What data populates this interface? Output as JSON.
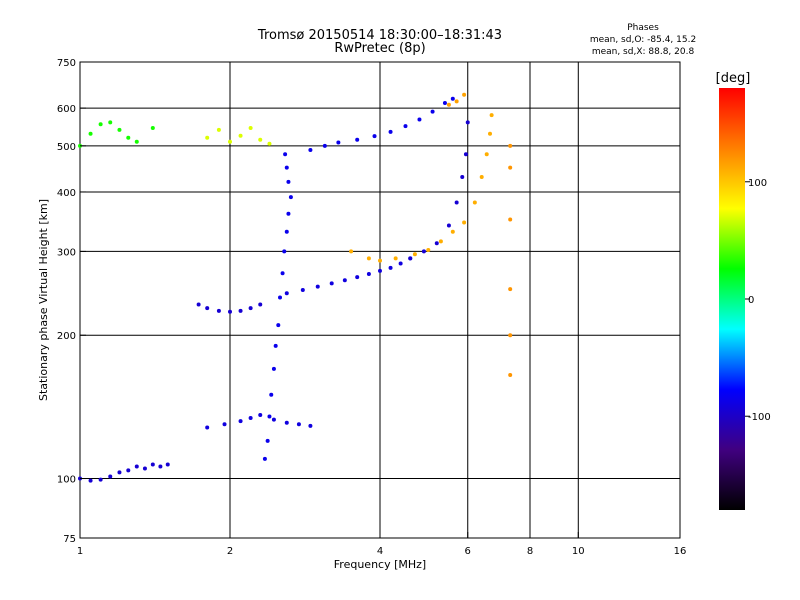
{
  "chart_data": {
    "type": "scatter",
    "title": "Tromsø 20150514 18:30:00–18:31:43",
    "subtitle": "RwPretec (8p)",
    "stats": {
      "heading": "Phases",
      "line1": "mean, sd,O: -85.4, 15.2",
      "line2": "mean, sd,X: 88.8, 20.8"
    },
    "xlabel": "Frequency [MHz]",
    "ylabel": "Stationary phase Virtual Height [km]",
    "x_scale": "log2",
    "y_scale": "log",
    "xlim": [
      1,
      16
    ],
    "ylim": [
      75,
      750
    ],
    "xticks": [
      {
        "value": 1,
        "label": "1"
      },
      {
        "value": 2,
        "label": "2"
      },
      {
        "value": 4,
        "label": "4"
      },
      {
        "value": 6,
        "label": "6"
      },
      {
        "value": 8,
        "label": "8"
      },
      {
        "value": 10,
        "label": "10"
      },
      {
        "value": 16,
        "label": "16"
      }
    ],
    "x_gridlines": [
      2,
      4,
      6,
      8,
      10
    ],
    "yticks": [
      {
        "value": 75,
        "label": "75"
      },
      {
        "value": 100,
        "label": "100"
      },
      {
        "value": 200,
        "label": "200"
      },
      {
        "value": 300,
        "label": "300"
      },
      {
        "value": 400,
        "label": "400"
      },
      {
        "value": 500,
        "label": "500"
      },
      {
        "value": 600,
        "label": "600"
      },
      {
        "value": 750,
        "label": "750"
      }
    ],
    "y_gridlines": [
      100,
      200,
      300,
      400,
      500,
      600
    ],
    "colorbar": {
      "label": "[deg]",
      "min": -180,
      "max": 180,
      "ticks": [
        {
          "value": 100,
          "label": "100"
        },
        {
          "value": 0,
          "label": "0"
        },
        {
          "value": -100,
          "label": "-100"
        }
      ],
      "stops": [
        "#000000",
        "#400080",
        "#0000ff",
        "#00ffff",
        "#00ff00",
        "#ffff00",
        "#ff8000",
        "#ff0000"
      ]
    },
    "series": [
      {
        "phase": -95,
        "points": [
          [
            1.0,
            100
          ],
          [
            1.05,
            99
          ],
          [
            1.1,
            99.5
          ],
          [
            1.15,
            101
          ],
          [
            1.2,
            103
          ],
          [
            1.25,
            104
          ],
          [
            1.3,
            106
          ],
          [
            1.35,
            105
          ],
          [
            1.4,
            107
          ],
          [
            1.45,
            106
          ],
          [
            1.5,
            107
          ]
        ]
      },
      {
        "phase": -95,
        "points": [
          [
            1.73,
            232
          ],
          [
            1.8,
            228
          ],
          [
            1.9,
            225
          ],
          [
            2.0,
            224
          ],
          [
            2.1,
            225
          ],
          [
            2.2,
            228
          ],
          [
            2.3,
            232
          ]
        ]
      },
      {
        "phase": -90,
        "points": [
          [
            2.6,
            245
          ],
          [
            2.8,
            249
          ],
          [
            3.0,
            253
          ],
          [
            3.2,
            257
          ],
          [
            3.4,
            261
          ],
          [
            3.6,
            265
          ],
          [
            3.8,
            269
          ],
          [
            4.0,
            273
          ],
          [
            4.2,
            277
          ],
          [
            4.4,
            283
          ],
          [
            4.6,
            290
          ]
        ]
      },
      {
        "phase": -85,
        "points": [
          [
            2.9,
            490
          ],
          [
            3.1,
            500
          ],
          [
            3.3,
            508
          ],
          [
            3.6,
            515
          ],
          [
            3.9,
            524
          ],
          [
            4.2,
            535
          ],
          [
            4.5,
            550
          ],
          [
            4.8,
            568
          ],
          [
            5.1,
            590
          ],
          [
            5.4,
            615
          ],
          [
            5.6,
            628
          ]
        ]
      },
      {
        "phase": -95,
        "points": [
          [
            4.6,
            290
          ],
          [
            4.9,
            300
          ],
          [
            5.2,
            312
          ],
          [
            5.5,
            340
          ],
          [
            5.7,
            380
          ],
          [
            5.85,
            430
          ],
          [
            5.95,
            480
          ],
          [
            6.0,
            560
          ]
        ]
      },
      {
        "phase": -85,
        "points": [
          [
            2.35,
            110
          ],
          [
            2.38,
            120
          ],
          [
            2.4,
            135
          ],
          [
            2.42,
            150
          ],
          [
            2.45,
            170
          ],
          [
            2.47,
            190
          ],
          [
            2.5,
            210
          ],
          [
            2.52,
            240
          ],
          [
            2.55,
            270
          ],
          [
            2.57,
            300
          ],
          [
            2.6,
            330
          ],
          [
            2.62,
            360
          ],
          [
            2.65,
            390
          ],
          [
            2.62,
            420
          ],
          [
            2.6,
            450
          ],
          [
            2.58,
            480
          ]
        ]
      },
      {
        "phase": -90,
        "points": [
          [
            1.8,
            128
          ],
          [
            1.95,
            130
          ],
          [
            2.1,
            132
          ],
          [
            2.2,
            134
          ],
          [
            2.3,
            136
          ],
          [
            2.45,
            133
          ],
          [
            2.6,
            131
          ],
          [
            2.75,
            130
          ],
          [
            2.9,
            129
          ]
        ]
      },
      {
        "phase": 110,
        "points": [
          [
            3.5,
            300
          ],
          [
            3.8,
            290
          ],
          [
            4.0,
            287
          ],
          [
            4.3,
            290
          ],
          [
            4.7,
            296
          ],
          [
            5.0,
            302
          ],
          [
            5.3,
            315
          ],
          [
            5.6,
            330
          ],
          [
            5.9,
            345
          ],
          [
            6.2,
            380
          ],
          [
            6.4,
            430
          ],
          [
            6.55,
            480
          ],
          [
            6.65,
            530
          ],
          [
            6.7,
            580
          ]
        ]
      },
      {
        "phase": 115,
        "points": [
          [
            5.5,
            610
          ],
          [
            5.7,
            620
          ],
          [
            5.9,
            640
          ]
        ]
      },
      {
        "phase": 120,
        "points": [
          [
            7.3,
            165
          ],
          [
            7.3,
            200
          ],
          [
            7.3,
            250
          ],
          [
            7.3,
            350
          ],
          [
            7.3,
            450
          ],
          [
            7.3,
            500
          ]
        ]
      },
      {
        "phase": 30,
        "points": [
          [
            1.0,
            500
          ],
          [
            1.05,
            530
          ],
          [
            1.1,
            555
          ],
          [
            1.15,
            560
          ],
          [
            1.2,
            540
          ],
          [
            1.25,
            520
          ],
          [
            1.3,
            510
          ],
          [
            1.4,
            545
          ]
        ]
      },
      {
        "phase": 70,
        "points": [
          [
            1.8,
            520
          ],
          [
            1.9,
            540
          ],
          [
            2.0,
            510
          ],
          [
            2.1,
            525
          ],
          [
            2.2,
            545
          ],
          [
            2.3,
            515
          ],
          [
            2.4,
            505
          ]
        ]
      }
    ]
  }
}
